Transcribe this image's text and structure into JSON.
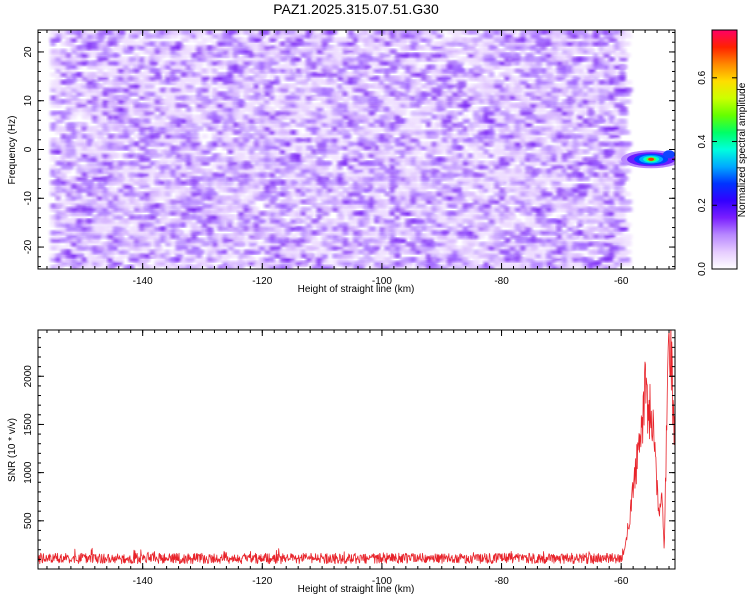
{
  "chart_data": [
    {
      "type": "heatmap",
      "title": "PAZ1.2025.315.07.51.G30",
      "xlabel": "Height of straight line (km)",
      "ylabel": "Frequency (Hz)",
      "xlim": [
        -157.5,
        -51.0
      ],
      "ylim": [
        -24.5,
        24.5
      ],
      "xticks": [
        "-140",
        "-120",
        "-100",
        "-80",
        "-60"
      ],
      "yticks": [
        "20",
        "10",
        "0",
        "-10",
        "-20"
      ],
      "data_extent_x": [
        -155.5,
        -59.5
      ],
      "colorbar": {
        "label": "Normalized spectral amplitude",
        "range": [
          0.0,
          0.75
        ],
        "ticks": [
          "0.0",
          "0.2",
          "0.4",
          "0.6"
        ],
        "colors": [
          "#ffffff",
          "#e6ccff",
          "#b888ff",
          "#7a1fff",
          "#3300ff",
          "#0033ff",
          "#00aaff",
          "#00ffdd",
          "#00ff66",
          "#66ff00",
          "#ccff00",
          "#ffdd00",
          "#ff8800",
          "#ff2200",
          "#ff0066"
        ]
      },
      "hotspot": {
        "x": -55.0,
        "y": -2.0,
        "peak": 0.48,
        "description_values": [
          -2.0,
          0.48
        ]
      }
    },
    {
      "type": "line",
      "xlabel": "Height of straight line (km)",
      "ylabel": "SNR (10 * v/v)",
      "xlim": [
        -157.5,
        -51.0
      ],
      "ylim": [
        0,
        2480
      ],
      "xticks": [
        "-140",
        "-120",
        "-100",
        "-80",
        "-60"
      ],
      "yticks": [
        "500",
        "1000",
        "1500",
        "2000"
      ],
      "series": [
        {
          "name": "SNR",
          "color": "#e8232a",
          "baseline_mean": 110,
          "baseline_noise": 55,
          "keypoints": [
            [
              -157.5,
              110
            ],
            [
              -60.0,
              110
            ],
            [
              -59.4,
              230
            ],
            [
              -58.5,
              560
            ],
            [
              -57.5,
              1050
            ],
            [
              -56.8,
              1350
            ],
            [
              -56.3,
              1650
            ],
            [
              -55.9,
              1920
            ],
            [
              -55.4,
              1500
            ],
            [
              -55.0,
              1750
            ],
            [
              -54.6,
              1350
            ],
            [
              -54.1,
              950
            ],
            [
              -53.7,
              500
            ],
            [
              -53.2,
              850
            ],
            [
              -52.8,
              200
            ],
            [
              -52.4,
              1500
            ],
            [
              -52.0,
              2480
            ],
            [
              -51.6,
              2100
            ],
            [
              -51.0,
              1300
            ]
          ]
        }
      ]
    }
  ]
}
